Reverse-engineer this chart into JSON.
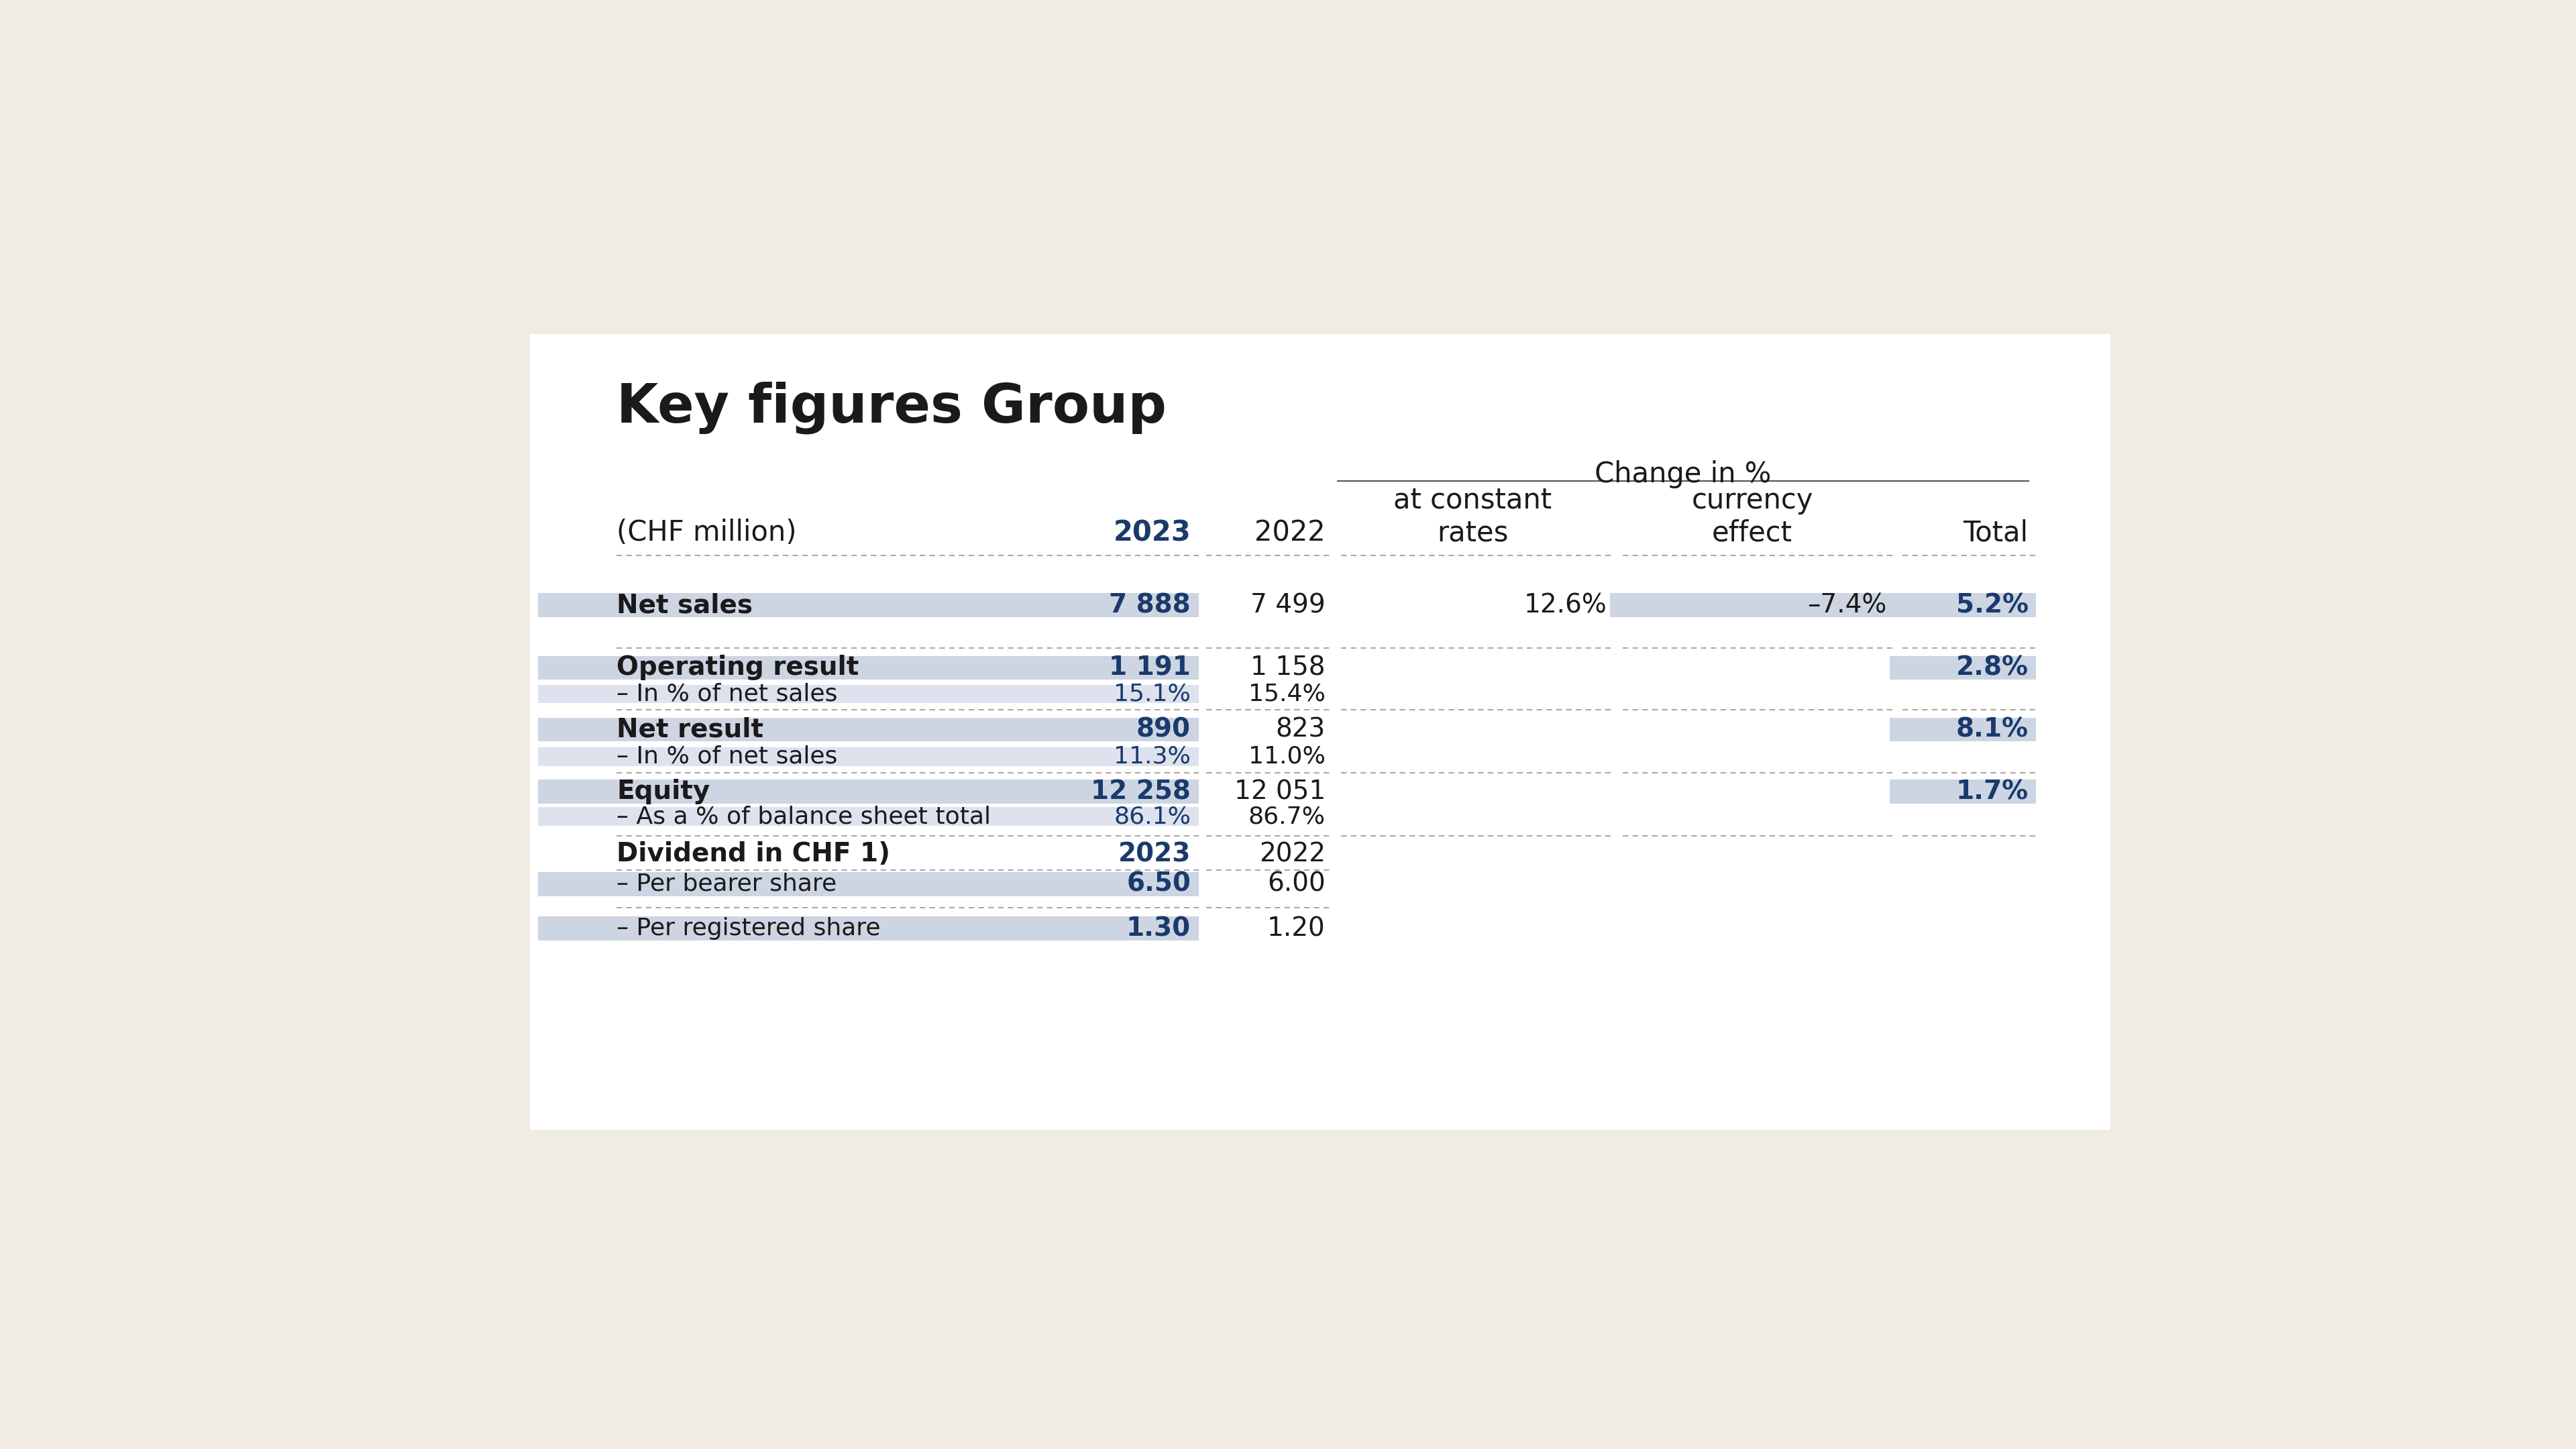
{
  "title": "Key figures Group",
  "bg_color": "#f0ebe3",
  "card_color": "#ffffff",
  "text_color": "#1a1a1a",
  "blue_color": "#1a3a6b",
  "highlight_color": "#cdd5e3",
  "separator_color": "#999999",
  "change_in_pct_label": "Change in %",
  "rows": [
    {
      "label": "Net sales",
      "sublabel": "",
      "val2023": "7 888",
      "val2022": "7 499",
      "val2023_sub": "",
      "val2022_sub": "",
      "const_rates": "12.6%",
      "currency": "–7.4%",
      "total": "5.2%",
      "has_sub": false
    },
    {
      "label": "Operating result",
      "sublabel": "– In % of net sales",
      "val2023": "1 191",
      "val2022": "1 158",
      "val2023_sub": "15.1%",
      "val2022_sub": "15.4%",
      "const_rates": "",
      "currency": "",
      "total": "2.8%",
      "has_sub": true
    },
    {
      "label": "Net result",
      "sublabel": "– In % of net sales",
      "val2023": "890",
      "val2022": "823",
      "val2023_sub": "11.3%",
      "val2022_sub": "11.0%",
      "const_rates": "",
      "currency": "",
      "total": "8.1%",
      "has_sub": true
    },
    {
      "label": "Equity",
      "sublabel": "– As a % of balance sheet total",
      "val2023": "12 258",
      "val2022": "12 051",
      "val2023_sub": "86.1%",
      "val2022_sub": "86.7%",
      "const_rates": "",
      "currency": "",
      "total": "1.7%",
      "has_sub": true
    }
  ],
  "dividend": {
    "label": "Dividend in CHF 1)",
    "items": [
      {
        "sublabel": "– Per bearer share",
        "val2023": "6.50",
        "val2022": "6.00"
      },
      {
        "sublabel": "– Per registered share",
        "val2023": "1.30",
        "val2022": "1.20"
      }
    ]
  }
}
